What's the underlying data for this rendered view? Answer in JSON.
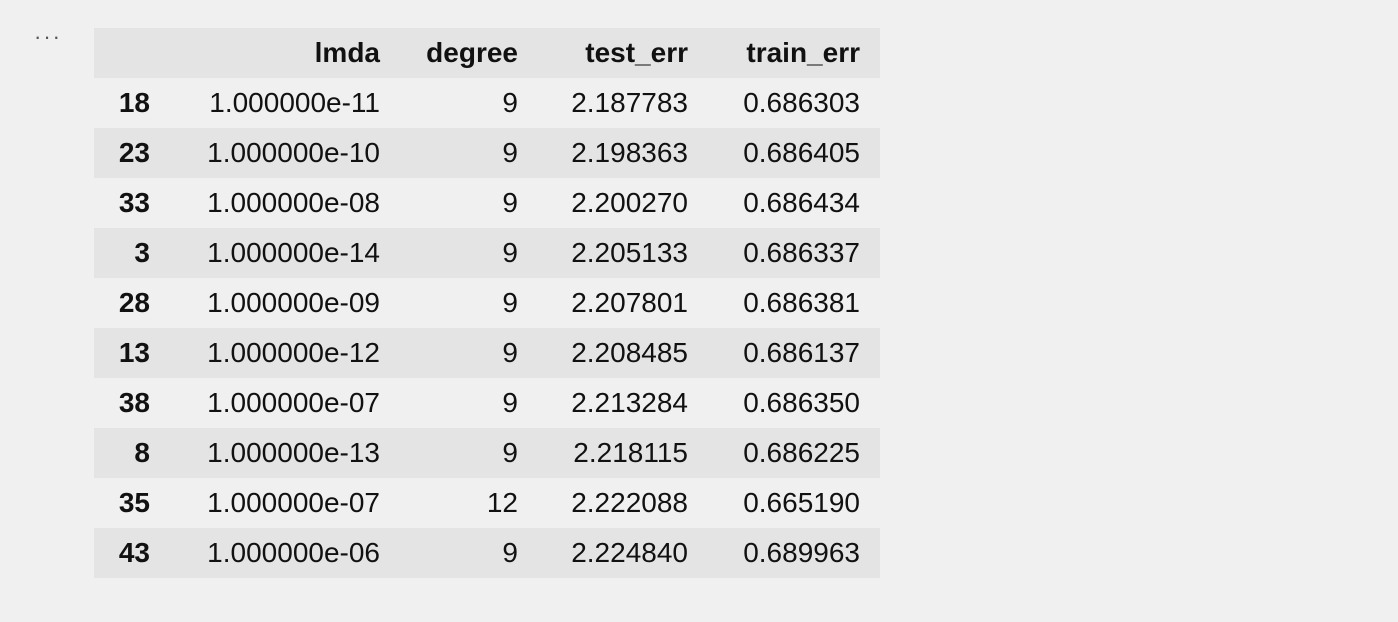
{
  "cell": {
    "menu_glyph": "···"
  },
  "table": {
    "columns": [
      "",
      "lmda",
      "degree",
      "test_err",
      "train_err"
    ],
    "rows": [
      {
        "index": "18",
        "lmda": "1.000000e-11",
        "degree": "9",
        "test_err": "2.187783",
        "train_err": "0.686303"
      },
      {
        "index": "23",
        "lmda": "1.000000e-10",
        "degree": "9",
        "test_err": "2.198363",
        "train_err": "0.686405"
      },
      {
        "index": "33",
        "lmda": "1.000000e-08",
        "degree": "9",
        "test_err": "2.200270",
        "train_err": "0.686434"
      },
      {
        "index": "3",
        "lmda": "1.000000e-14",
        "degree": "9",
        "test_err": "2.205133",
        "train_err": "0.686337"
      },
      {
        "index": "28",
        "lmda": "1.000000e-09",
        "degree": "9",
        "test_err": "2.207801",
        "train_err": "0.686381"
      },
      {
        "index": "13",
        "lmda": "1.000000e-12",
        "degree": "9",
        "test_err": "2.208485",
        "train_err": "0.686137"
      },
      {
        "index": "38",
        "lmda": "1.000000e-07",
        "degree": "9",
        "test_err": "2.213284",
        "train_err": "0.686350"
      },
      {
        "index": "8",
        "lmda": "1.000000e-13",
        "degree": "9",
        "test_err": "2.218115",
        "train_err": "0.686225"
      },
      {
        "index": "35",
        "lmda": "1.000000e-07",
        "degree": "12",
        "test_err": "2.222088",
        "train_err": "0.665190"
      },
      {
        "index": "43",
        "lmda": "1.000000e-06",
        "degree": "9",
        "test_err": "2.224840",
        "train_err": "0.689963"
      }
    ]
  }
}
